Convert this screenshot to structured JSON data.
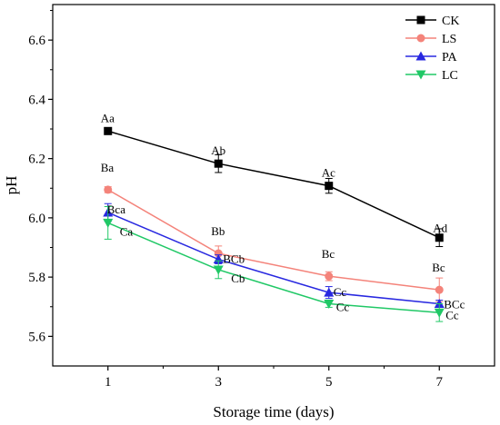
{
  "chart_data": {
    "type": "line",
    "xlabel": "Storage time (days)",
    "ylabel": "pH",
    "x": [
      1,
      3,
      5,
      7
    ],
    "x_ticks": [
      "1",
      "3",
      "5",
      "7"
    ],
    "xlim": [
      0,
      8
    ],
    "ylim": [
      5.5,
      6.72
    ],
    "y_ticks": [
      "5.6",
      "5.8",
      "6.0",
      "6.2",
      "6.4",
      "6.6"
    ],
    "y_tick_values": [
      5.6,
      5.8,
      6.0,
      6.2,
      6.4,
      6.6
    ],
    "legend_position": "top-right",
    "grid": false,
    "series": [
      {
        "name": "CK",
        "color": "#000000",
        "marker": "square",
        "values": [
          6.293,
          6.183,
          6.108,
          5.933
        ],
        "errors": [
          0.01,
          0.03,
          0.025,
          0.03
        ],
        "labels": [
          "Aa",
          "Ab",
          "Ac",
          "Ad"
        ]
      },
      {
        "name": "LS",
        "color": "#f4837a",
        "marker": "circle",
        "values": [
          6.095,
          5.88,
          5.803,
          5.757
        ],
        "errors": [
          0.01,
          0.025,
          0.015,
          0.04
        ],
        "labels": [
          "Ba",
          "Bb",
          "Bc",
          "Bc"
        ]
      },
      {
        "name": "PA",
        "color": "#2828e0",
        "marker": "triangle-up",
        "values": [
          6.018,
          5.86,
          5.748,
          5.71
        ],
        "errors": [
          0.03,
          0.015,
          0.02,
          0.012
        ],
        "labels": [
          "Bca",
          "BCb",
          "Cc",
          "BCc"
        ]
      },
      {
        "name": "LC",
        "color": "#20c866",
        "marker": "triangle-down",
        "values": [
          5.983,
          5.825,
          5.71,
          5.68
        ],
        "errors": [
          0.055,
          0.03,
          0.012,
          0.03
        ],
        "labels": [
          "Ca",
          "Cb",
          "Cc",
          "Cc"
        ]
      }
    ]
  }
}
